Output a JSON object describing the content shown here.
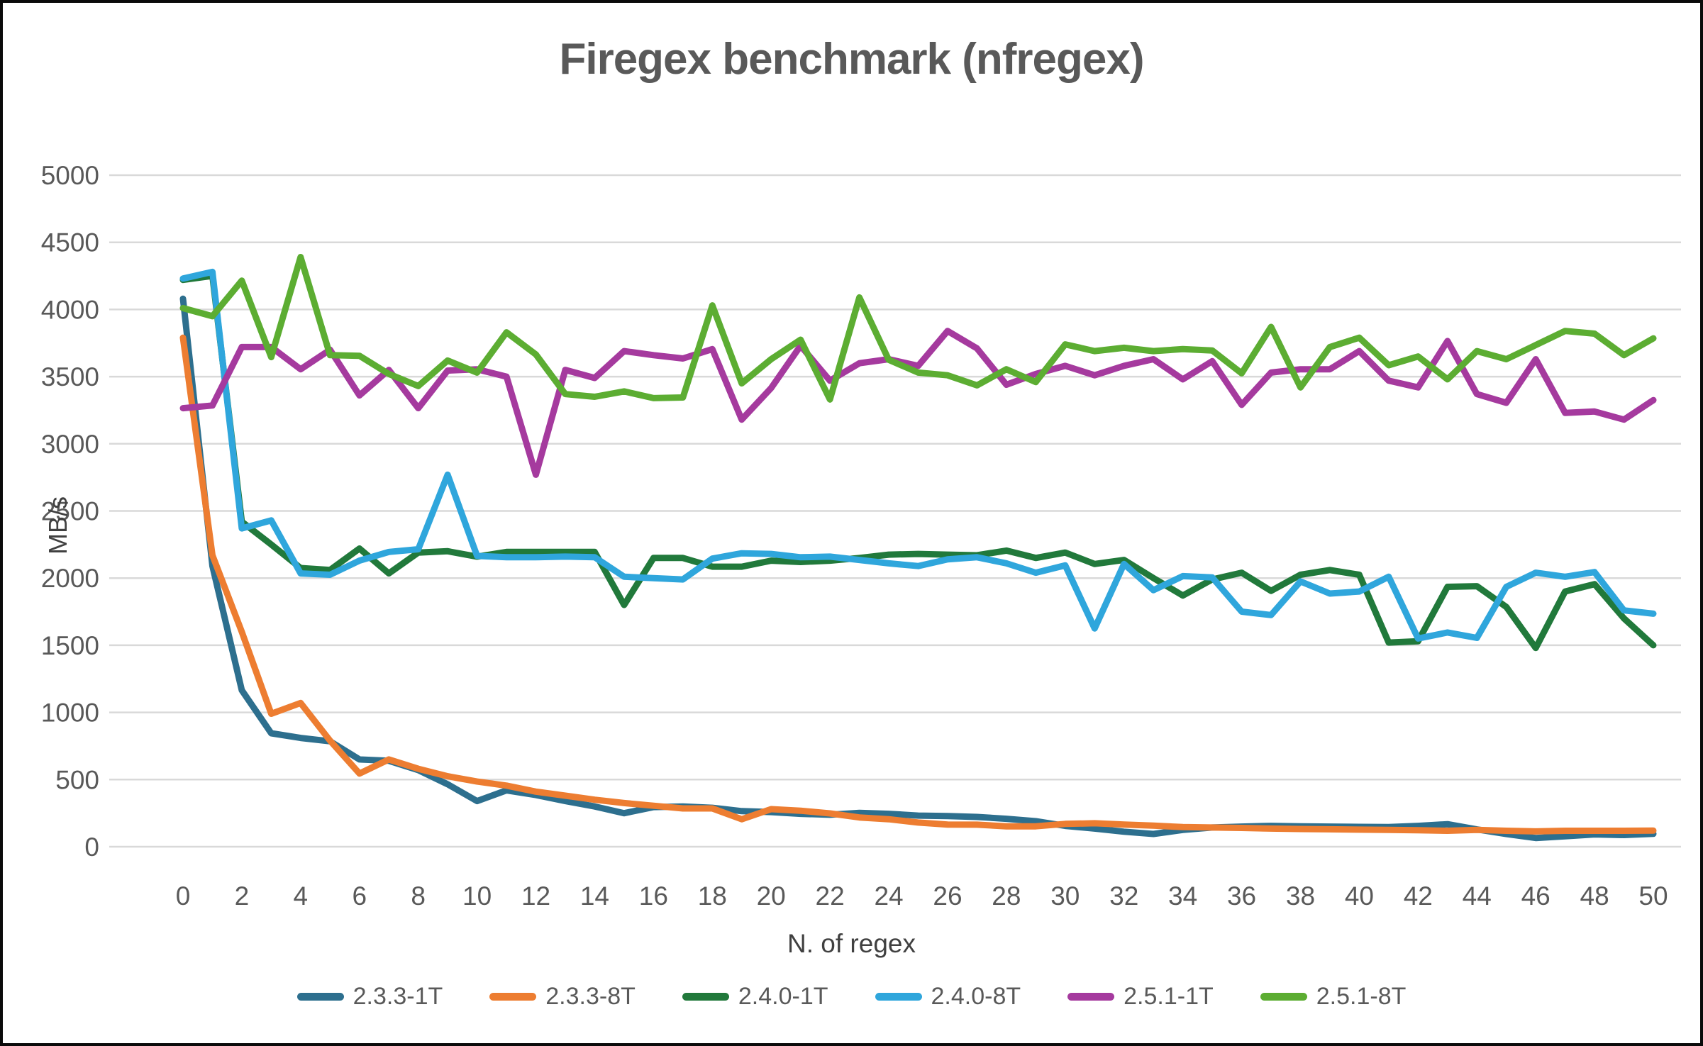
{
  "title": "Firegex benchmark (nfregex)",
  "colors": {
    "background": "#FFFFFF",
    "border": "#0A0A0A",
    "grid": "#D9D9D9",
    "tick_text": "#595959",
    "axis_title_text": "#404040"
  },
  "chart_data": {
    "type": "line",
    "title": "Firegex benchmark (nfregex)",
    "xlabel": "N. of regex",
    "ylabel": "MB/s",
    "xlim": [
      0,
      50
    ],
    "ylim": [
      0,
      5000
    ],
    "grid": "horizontal",
    "legend_position": "bottom",
    "yticks": [
      0,
      500,
      1000,
      1500,
      2000,
      2500,
      3000,
      3500,
      4000,
      4500,
      5000
    ],
    "xticks": [
      0,
      2,
      4,
      6,
      8,
      10,
      12,
      14,
      16,
      18,
      20,
      22,
      24,
      26,
      28,
      30,
      32,
      34,
      36,
      38,
      40,
      42,
      44,
      46,
      48,
      50
    ],
    "x": [
      0,
      1,
      2,
      3,
      4,
      5,
      6,
      7,
      8,
      9,
      10,
      11,
      12,
      13,
      14,
      15,
      16,
      17,
      18,
      19,
      20,
      21,
      22,
      23,
      24,
      25,
      26,
      27,
      28,
      29,
      30,
      31,
      32,
      33,
      34,
      35,
      36,
      37,
      38,
      39,
      40,
      41,
      42,
      43,
      44,
      45,
      46,
      47,
      48,
      49,
      50
    ],
    "series": [
      {
        "name": "2.3.3-1T",
        "color": "#2D6F8E",
        "values": [
          4080,
          2090,
          1165,
          845,
          810,
          785,
          650,
          640,
          570,
          465,
          340,
          420,
          385,
          340,
          300,
          250,
          295,
          300,
          290,
          265,
          258,
          245,
          238,
          252,
          245,
          232,
          228,
          222,
          208,
          190,
          155,
          135,
          112,
          95,
          125,
          143,
          150,
          155,
          152,
          150,
          148,
          146,
          155,
          168,
          129,
          95,
          65,
          78,
          92,
          87,
          96
        ]
      },
      {
        "name": "2.3.3-8T",
        "color": "#ED7D31",
        "values": [
          3790,
          2170,
          1600,
          990,
          1070,
          790,
          545,
          650,
          580,
          525,
          485,
          455,
          410,
          380,
          350,
          325,
          305,
          285,
          285,
          205,
          280,
          268,
          248,
          218,
          205,
          180,
          165,
          164,
          152,
          152,
          170,
          175,
          165,
          157,
          146,
          143,
          140,
          135,
          132,
          130,
          127,
          125,
          123,
          119,
          125,
          119,
          114,
          119,
          119,
          119,
          120
        ]
      },
      {
        "name": "2.4.0-1T",
        "color": "#21793B",
        "values": [
          4220,
          4250,
          2420,
          2250,
          2075,
          2060,
          2220,
          2035,
          2190,
          2200,
          2160,
          2195,
          2195,
          2195,
          2195,
          1800,
          2150,
          2150,
          2085,
          2085,
          2130,
          2120,
          2130,
          2150,
          2175,
          2180,
          2175,
          2170,
          2205,
          2150,
          2190,
          2105,
          2135,
          2000,
          1870,
          1990,
          2040,
          1905,
          2025,
          2060,
          2025,
          1520,
          1530,
          1935,
          1940,
          1785,
          1480,
          1900,
          1955,
          1700,
          1500
        ]
      },
      {
        "name": "2.4.0-8T",
        "color": "#2FA6DC",
        "values": [
          4230,
          4280,
          2370,
          2430,
          2035,
          2025,
          2130,
          2195,
          2215,
          2770,
          2165,
          2155,
          2155,
          2160,
          2155,
          2010,
          2000,
          1990,
          2145,
          2185,
          2180,
          2155,
          2160,
          2135,
          2110,
          2090,
          2140,
          2155,
          2110,
          2040,
          2095,
          1625,
          2105,
          1910,
          2015,
          2005,
          1750,
          1725,
          1975,
          1885,
          1900,
          2010,
          1550,
          1595,
          1555,
          1935,
          2040,
          2010,
          2045,
          1760,
          1735
        ]
      },
      {
        "name": "2.5.1-1T",
        "color": "#A53A9E",
        "values": [
          3265,
          3285,
          3720,
          3720,
          3555,
          3700,
          3360,
          3550,
          3265,
          3545,
          3555,
          3500,
          2770,
          3550,
          3490,
          3690,
          3660,
          3635,
          3705,
          3180,
          3415,
          3730,
          3470,
          3600,
          3630,
          3580,
          3840,
          3710,
          3440,
          3520,
          3580,
          3510,
          3580,
          3630,
          3480,
          3615,
          3290,
          3530,
          3555,
          3555,
          3690,
          3470,
          3420,
          3765,
          3370,
          3305,
          3630,
          3230,
          3240,
          3180,
          3325
        ]
      },
      {
        "name": "2.5.1-8T",
        "color": "#5CAD32",
        "values": [
          4010,
          3950,
          4215,
          3645,
          4390,
          3660,
          3655,
          3520,
          3430,
          3620,
          3530,
          3830,
          3665,
          3370,
          3350,
          3390,
          3340,
          3345,
          4030,
          3450,
          3630,
          3775,
          3330,
          4090,
          3625,
          3530,
          3510,
          3435,
          3555,
          3460,
          3740,
          3690,
          3715,
          3690,
          3705,
          3695,
          3525,
          3870,
          3420,
          3720,
          3790,
          3585,
          3650,
          3480,
          3690,
          3630,
          3735,
          3840,
          3820,
          3660,
          3785
        ]
      }
    ]
  }
}
